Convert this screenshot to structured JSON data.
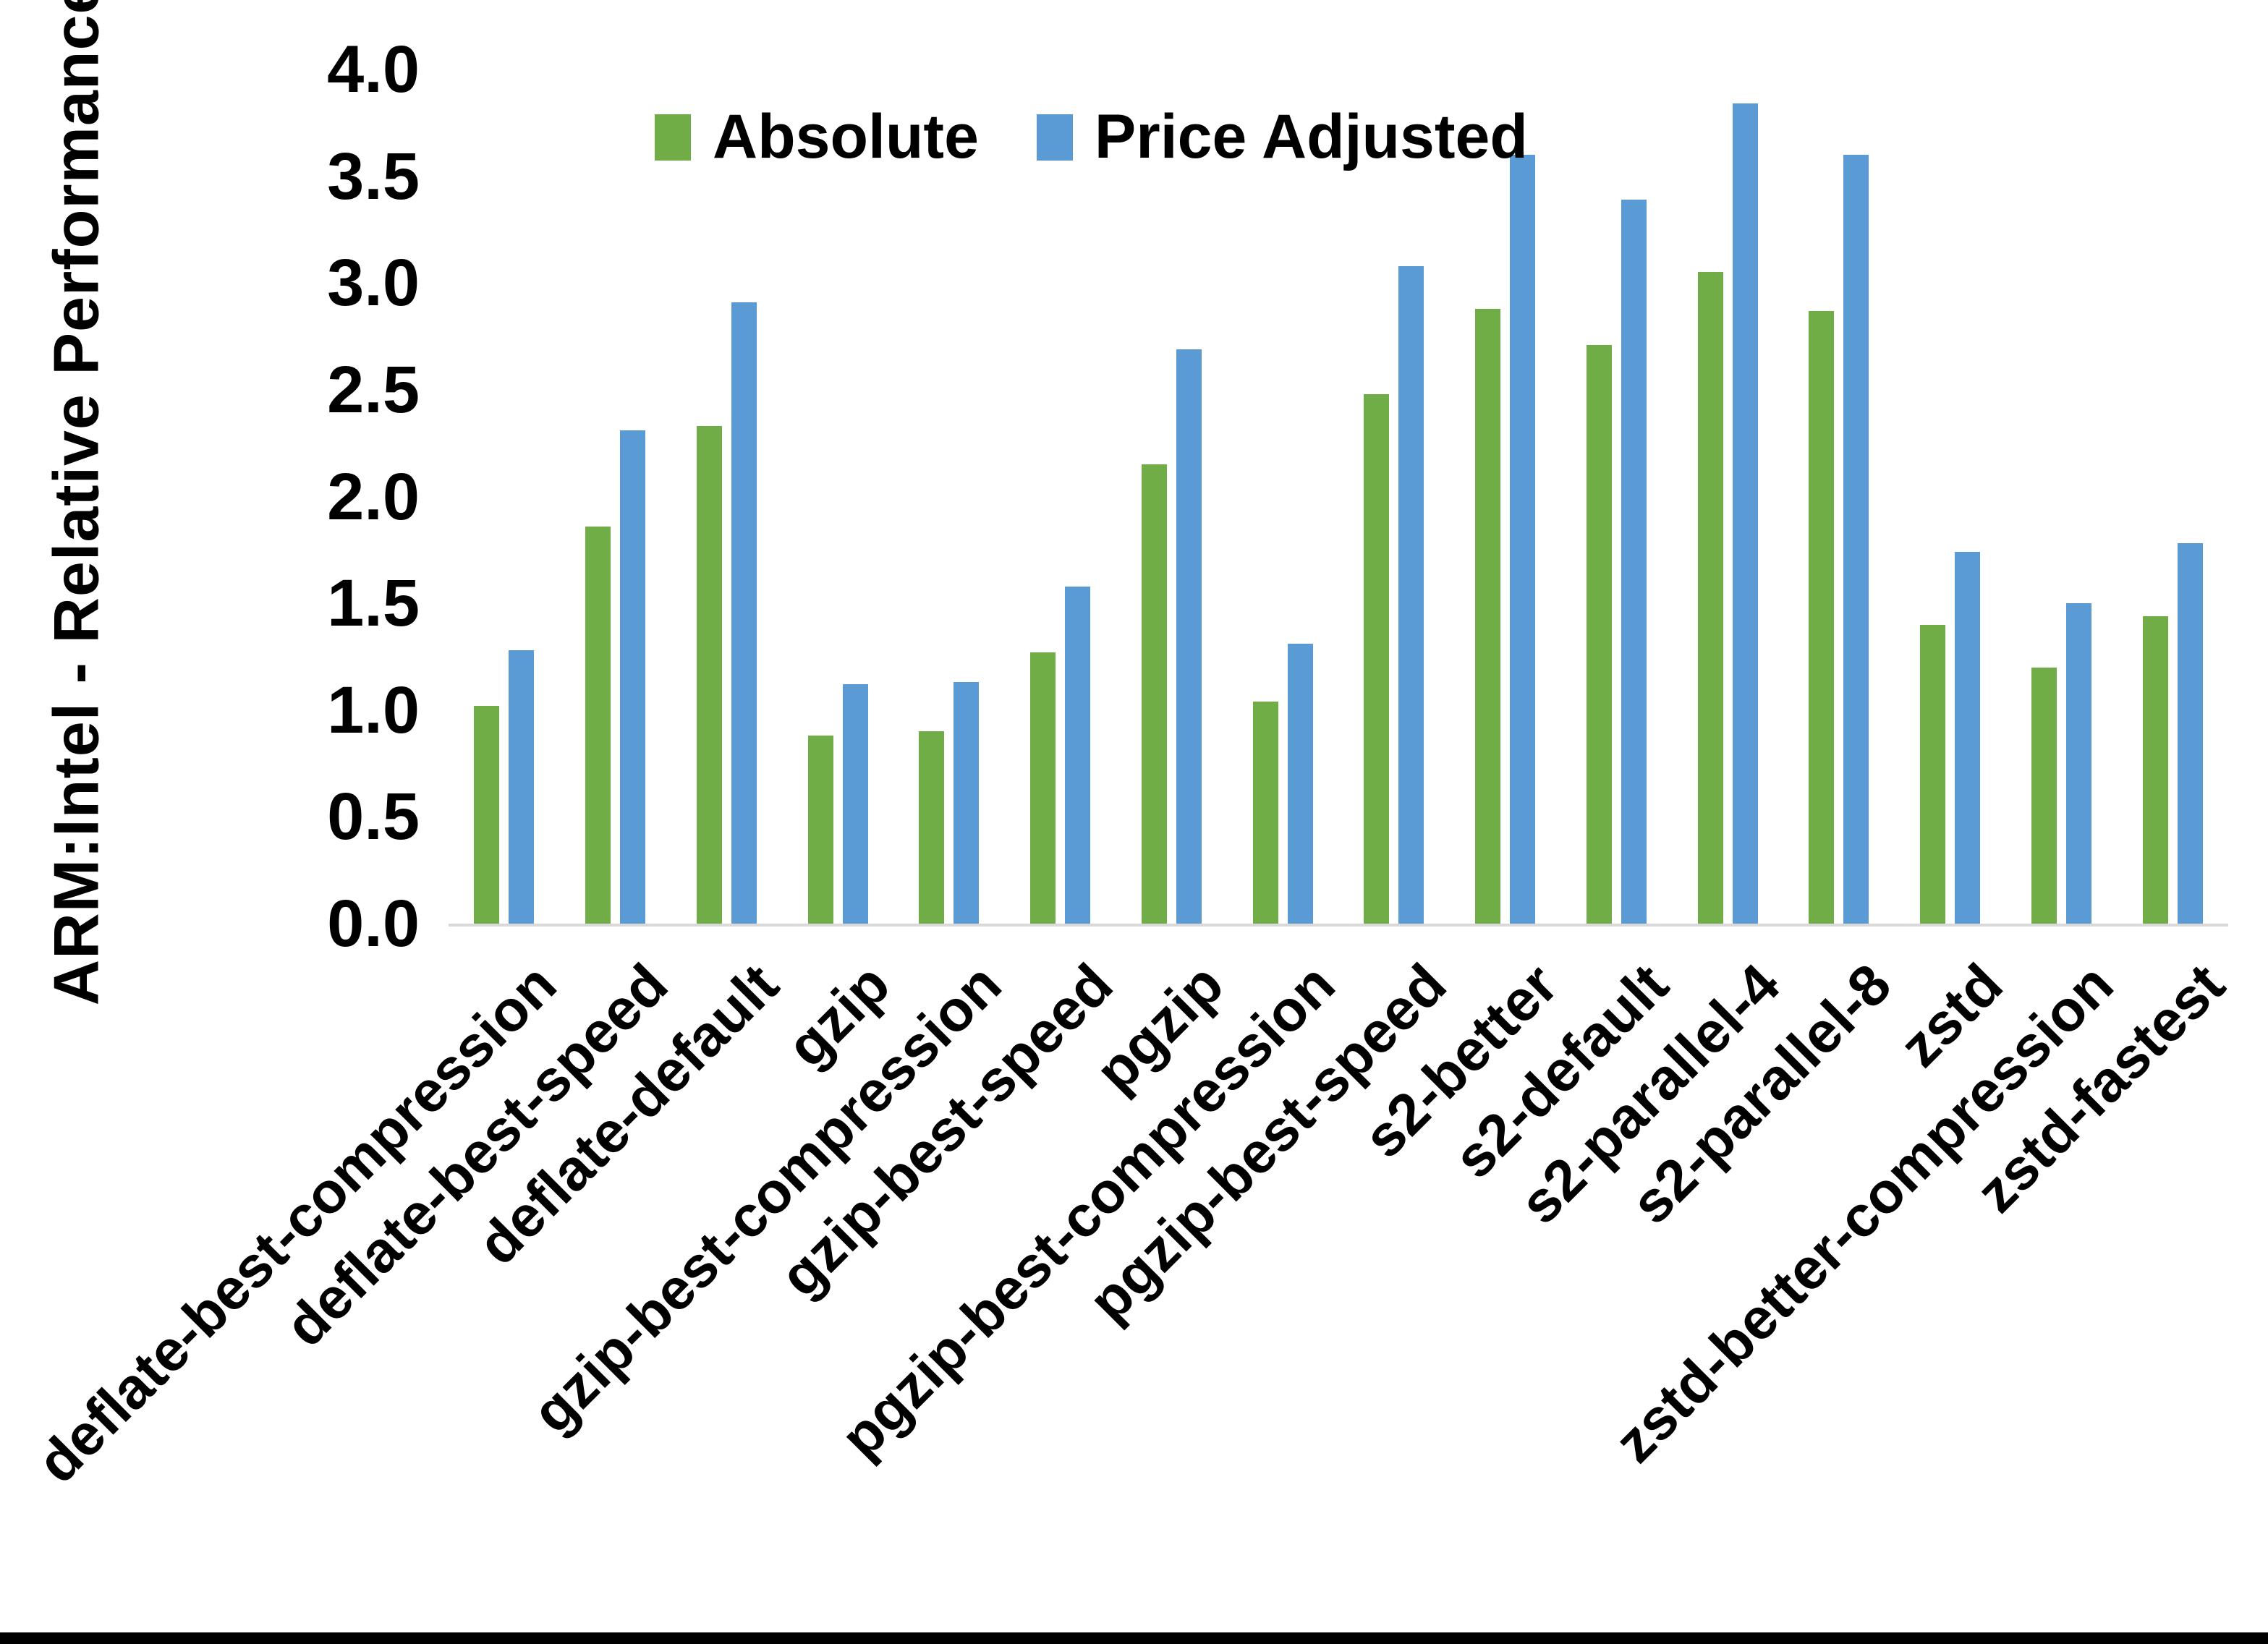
{
  "chart_data": {
    "type": "bar",
    "title": "",
    "xlabel": "",
    "ylabel": "ARM:Intel - Relative Performance",
    "ylim": [
      0,
      4
    ],
    "ytick_step": 0.5,
    "ytick_labels": [
      "4.0",
      "3.5",
      "3.0",
      "2.5",
      "2.0",
      "1.5",
      "1.0",
      "0.5",
      "0.0"
    ],
    "grid": false,
    "legend_position": "top-center",
    "bar_orientation": "vertical",
    "x_label_rotation_deg": 45,
    "categories": [
      "deflate-best-compression",
      "deflate-best-speed",
      "deflate-default",
      "gzip",
      "gzip-best-compression",
      "gzip-best-speed",
      "pgzip",
      "pgzip-best-compression",
      "pgzip-best-speed",
      "s2-better",
      "s2-default",
      "s2-parallel-4",
      "s2-parallel-8",
      "zstd",
      "zstd-better-compression",
      "zstd-fastest"
    ],
    "series": [
      {
        "name": "Absolute",
        "color": "#70AD47",
        "values": [
          1.02,
          1.86,
          2.33,
          0.88,
          0.9,
          1.27,
          2.15,
          1.04,
          2.48,
          2.88,
          2.71,
          3.05,
          2.87,
          1.4,
          1.2,
          1.44
        ]
      },
      {
        "name": "Price Adjusted",
        "color": "#5B9BD5",
        "values": [
          1.28,
          2.31,
          2.91,
          1.12,
          1.13,
          1.58,
          2.69,
          1.31,
          3.08,
          3.6,
          3.39,
          3.84,
          3.6,
          1.74,
          1.5,
          1.78
        ]
      }
    ],
    "axis_line_color": "#d9d9d9",
    "text_color": "#000000"
  }
}
